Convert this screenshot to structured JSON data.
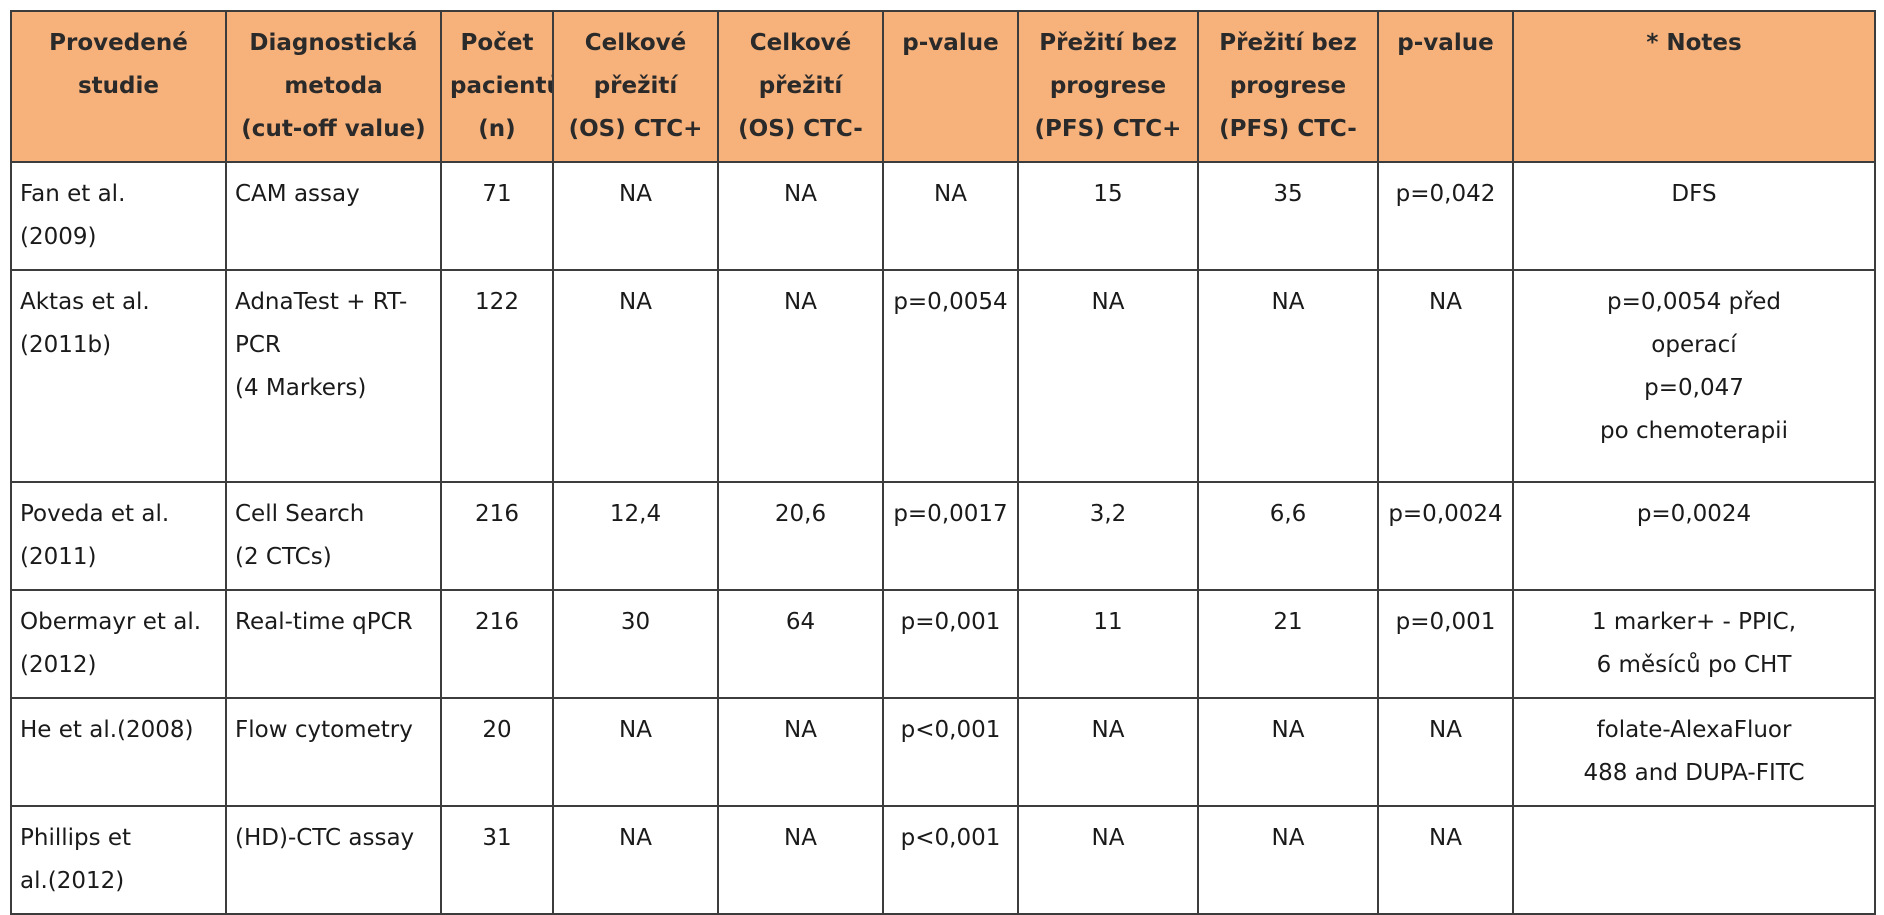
{
  "table": {
    "headers": [
      [
        "Provedené",
        "studie"
      ],
      [
        "Diagnostická",
        "metoda",
        "(cut-off value)"
      ],
      [
        "Počet",
        "pacientů",
        "(n)"
      ],
      [
        "Celkové",
        "přežití",
        "(OS) CTC+"
      ],
      [
        "Celkové",
        "přežití",
        "(OS) CTC-"
      ],
      [
        "p-value"
      ],
      [
        "Přežití bez",
        "progrese",
        "(PFS) CTC+"
      ],
      [
        "Přežití bez",
        "progrese",
        "(PFS) CTC-"
      ],
      [
        "p-value"
      ],
      [
        "* Notes"
      ]
    ],
    "rows": [
      {
        "study": [
          "Fan et al.",
          "(2009)"
        ],
        "method": [
          "CAM assay"
        ],
        "n": "71",
        "os_pos": "NA",
        "os_neg": "NA",
        "p1": "NA",
        "pfs_pos": "15",
        "pfs_neg": "35",
        "p2": "p=0,042",
        "notes": [
          "DFS"
        ]
      },
      {
        "study": [
          "Aktas et al.",
          "(2011b)"
        ],
        "method": [
          "AdnaTest + RT-",
          "PCR",
          "(4 Markers)"
        ],
        "n": "122",
        "os_pos": "NA",
        "os_neg": "NA",
        "p1": "p=0,0054",
        "pfs_pos": "NA",
        "pfs_neg": "NA",
        "p2": "NA",
        "notes": [
          "p=0,0054 před",
          "operací",
          "p=0,047",
          "po chemoterapii"
        ]
      },
      {
        "study": [
          "Poveda et al.",
          "(2011)"
        ],
        "method": [
          "Cell Search",
          "(2 CTCs)"
        ],
        "n": "216",
        "os_pos": "12,4",
        "os_neg": "20,6",
        "p1": "p=0,0017",
        "pfs_pos": "3,2",
        "pfs_neg": "6,6",
        "p2": "p=0,0024",
        "notes": [
          "p=0,0024"
        ]
      },
      {
        "study": [
          "Obermayr et al.",
          "(2012)"
        ],
        "method": [
          "Real-time qPCR"
        ],
        "n": "216",
        "os_pos": "30",
        "os_neg": "64",
        "p1": "p=0,001",
        "pfs_pos": "11",
        "pfs_neg": "21",
        "p2": "p=0,001",
        "notes": [
          "1 marker+ - PPIC,",
          "6 měsíců po CHT"
        ]
      },
      {
        "study": [
          "He et al.(2008)"
        ],
        "method": [
          "Flow cytometry"
        ],
        "n": "20",
        "os_pos": "NA",
        "os_neg": "NA",
        "p1": "p<0,001",
        "pfs_pos": "NA",
        "pfs_neg": "NA",
        "p2": "NA",
        "notes": [
          "folate-AlexaFluor",
          "488 and DUPA-FITC"
        ]
      },
      {
        "study": [
          "Phillips et",
          "al.(2012)"
        ],
        "method": [
          "(HD)-CTC assay"
        ],
        "n": "31",
        "os_pos": "NA",
        "os_neg": "NA",
        "p1": "p<0,001",
        "pfs_pos": "NA",
        "pfs_neg": "NA",
        "p2": "NA",
        "notes": []
      }
    ]
  },
  "colors": {
    "header_bg": "#f7b27c",
    "border": "#3c3c3c"
  }
}
